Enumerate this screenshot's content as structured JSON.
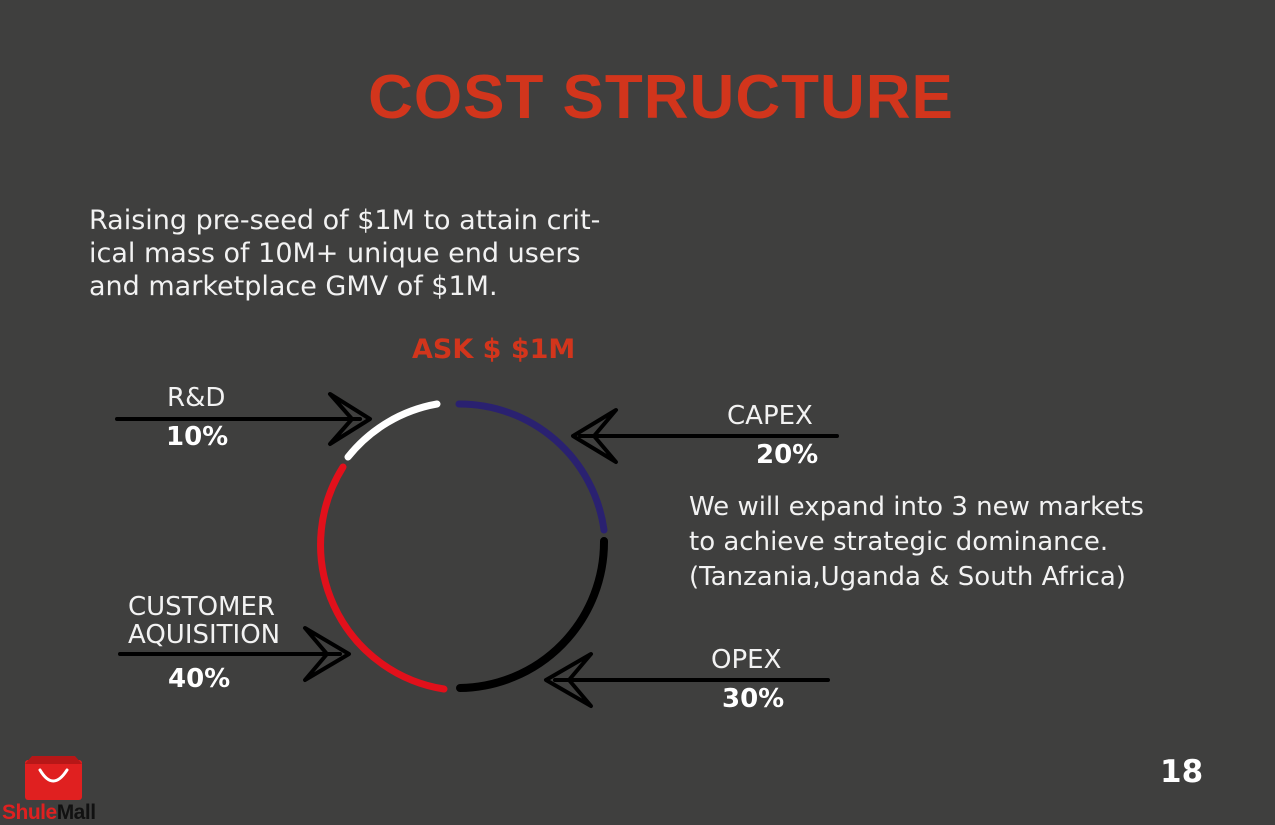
{
  "title": "COST STRUCTURE",
  "intro": {
    "line1": "Raising pre-seed of $1M to attain crit-",
    "line2": "ical mass of 10M+ unique end users",
    "line3": "and marketplace GMV of $1M."
  },
  "ask": "ASK $ $1M",
  "segments": [
    {
      "label": "R&D",
      "percent": "10%",
      "color": "#ffffff"
    },
    {
      "label": "CAPEX",
      "percent": "20%",
      "color": "#2a2170"
    },
    {
      "label": "OPEX",
      "percent": "30%",
      "color": "#000000"
    },
    {
      "label_line1": "CUSTOMER",
      "label_line2": "AQUISITION",
      "percent": "40%",
      "color": "#e2101b"
    }
  ],
  "expand": {
    "line1": "We will expand into 3 new markets",
    "line2": "to achieve strategic dominance.",
    "line3": "(Tanzania,Uganda & South Africa)"
  },
  "page_number": "18",
  "brand": {
    "part1": "Shule",
    "part2": "Mall",
    "logo": "shopping-bag-icon"
  }
}
